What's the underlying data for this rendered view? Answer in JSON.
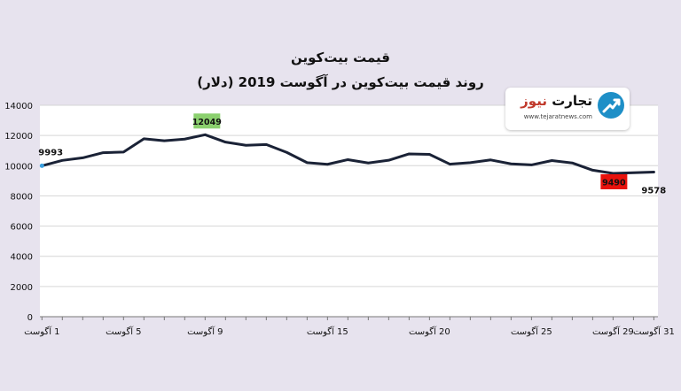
{
  "chart_data": {
    "type": "line",
    "title": "قیمت بیت‌کوین",
    "subtitle": "روند قیمت بیت‌کوین در آگوست 2019 (دلار)",
    "xlabel": "",
    "ylabel": "",
    "ylim": [
      0,
      14000
    ],
    "yticks": [
      0,
      2000,
      4000,
      6000,
      8000,
      10000,
      12000,
      14000
    ],
    "grid": true,
    "x": [
      1,
      2,
      3,
      4,
      5,
      6,
      7,
      8,
      9,
      10,
      11,
      12,
      13,
      14,
      15,
      16,
      17,
      18,
      19,
      20,
      21,
      22,
      23,
      24,
      25,
      26,
      27,
      28,
      29,
      30,
      31
    ],
    "xtick_values": [
      1,
      5,
      9,
      15,
      20,
      25,
      29,
      31
    ],
    "xtick_labels": [
      "1 آگوست",
      "5 آگوست",
      "9 آگوست",
      "15 آگوست",
      "20 آگوست",
      "25 آگوست",
      "29 آگوست",
      "31 آگوست"
    ],
    "series": [
      {
        "name": "",
        "color": "#1a2236",
        "values": [
          9993,
          10350,
          10520,
          10860,
          10900,
          11780,
          11650,
          11760,
          12049,
          11560,
          11350,
          11400,
          10880,
          10200,
          10090,
          10400,
          10180,
          10360,
          10780,
          10750,
          10100,
          10200,
          10380,
          10120,
          10050,
          10340,
          10180,
          9700,
          9490,
          9530,
          9578
        ]
      }
    ],
    "annotations": [
      {
        "label": "9993",
        "x": 1,
        "value": 9993,
        "style": "plain"
      },
      {
        "label": "12049",
        "x": 9,
        "value": 12049,
        "style": "box",
        "color": "#8bd06e"
      },
      {
        "label": "9490",
        "x": 29,
        "value": 9490,
        "style": "box",
        "color": "#e8120c"
      },
      {
        "label": "9578",
        "x": 31,
        "value": 9578,
        "style": "plain"
      }
    ]
  },
  "logo": {
    "name_part1": "تجارت",
    "name_part2": "نیوز",
    "url": "www.tejaratnews.com",
    "icon": "arrow-chart-icon",
    "color": "#1e8fc7"
  }
}
